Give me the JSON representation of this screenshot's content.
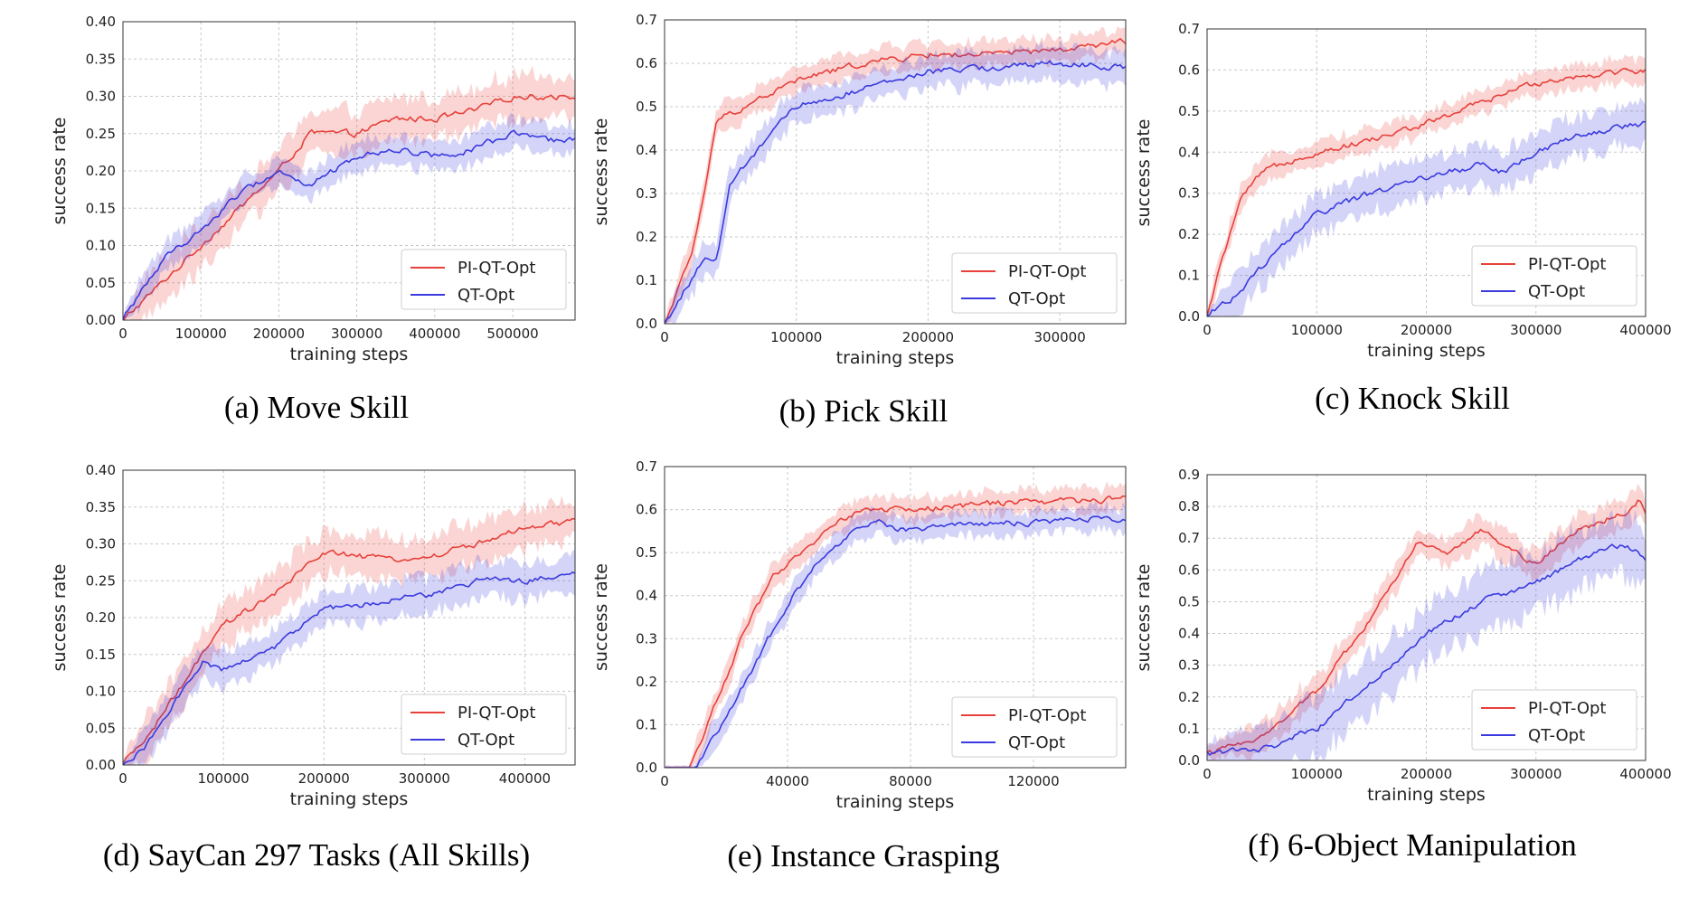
{
  "colors": {
    "pi_qt_opt": "#e8403a",
    "qt_opt": "#3a3ae0"
  },
  "chart_data": [
    {
      "type": "line",
      "caption": "(a) Move Skill",
      "xlabel": "training steps",
      "ylabel": "success rate",
      "xlim": [
        0,
        580000
      ],
      "ylim": [
        0,
        0.4
      ],
      "xticks": [
        0,
        100000,
        200000,
        300000,
        400000,
        500000
      ],
      "yticks": [
        0.0,
        0.05,
        0.1,
        0.15,
        0.2,
        0.25,
        0.3,
        0.35,
        0.4
      ],
      "ytick_decimals": 2,
      "grid": true,
      "legend": "bottom-right",
      "series": [
        {
          "name": "PI-QT-Opt",
          "color_key": "pi_qt_opt",
          "x": [
            0,
            30000,
            60000,
            100000,
            150000,
            200000,
            240000,
            300000,
            350000,
            400000,
            450000,
            500000,
            540000,
            575000
          ],
          "y": [
            0.0,
            0.03,
            0.06,
            0.1,
            0.15,
            0.2,
            0.25,
            0.25,
            0.27,
            0.27,
            0.28,
            0.3,
            0.3,
            0.3
          ],
          "band": 0.03
        },
        {
          "name": "QT-Opt",
          "color_key": "qt_opt",
          "x": [
            0,
            30000,
            60000,
            100000,
            150000,
            200000,
            240000,
            300000,
            350000,
            400000,
            450000,
            500000,
            540000,
            575000
          ],
          "y": [
            0.0,
            0.05,
            0.09,
            0.12,
            0.17,
            0.2,
            0.18,
            0.22,
            0.23,
            0.22,
            0.23,
            0.25,
            0.24,
            0.24
          ],
          "band": 0.02
        }
      ]
    },
    {
      "type": "line",
      "caption": "(b) Pick Skill",
      "xlabel": "training steps",
      "ylabel": "success rate",
      "xlim": [
        0,
        350000
      ],
      "ylim": [
        0,
        0.7
      ],
      "xticks": [
        0,
        100000,
        200000,
        300000
      ],
      "yticks": [
        0.0,
        0.1,
        0.2,
        0.3,
        0.4,
        0.5,
        0.6,
        0.7
      ],
      "ytick_decimals": 1,
      "grid": true,
      "legend": "bottom-right",
      "series": [
        {
          "name": "PI-QT-Opt",
          "color_key": "pi_qt_opt",
          "x": [
            0,
            10000,
            20000,
            30000,
            40000,
            60000,
            100000,
            150000,
            200000,
            250000,
            300000,
            350000
          ],
          "y": [
            0.0,
            0.08,
            0.15,
            0.3,
            0.47,
            0.5,
            0.56,
            0.6,
            0.62,
            0.62,
            0.63,
            0.65
          ],
          "band": 0.03
        },
        {
          "name": "QT-Opt",
          "color_key": "qt_opt",
          "x": [
            0,
            10000,
            20000,
            30000,
            40000,
            50000,
            70000,
            100000,
            150000,
            200000,
            250000,
            300000,
            350000
          ],
          "y": [
            0.0,
            0.05,
            0.1,
            0.15,
            0.15,
            0.32,
            0.4,
            0.5,
            0.54,
            0.58,
            0.59,
            0.6,
            0.59
          ],
          "band": 0.04
        }
      ]
    },
    {
      "type": "line",
      "caption": "(c) Knock Skill",
      "xlabel": "training steps",
      "ylabel": "success rate",
      "xlim": [
        0,
        400000
      ],
      "ylim": [
        0,
        0.7
      ],
      "xticks": [
        0,
        100000,
        200000,
        300000,
        400000
      ],
      "yticks": [
        0.0,
        0.1,
        0.2,
        0.3,
        0.4,
        0.5,
        0.6,
        0.7
      ],
      "ytick_decimals": 1,
      "grid": true,
      "legend": "bottom-right",
      "series": [
        {
          "name": "PI-QT-Opt",
          "color_key": "pi_qt_opt",
          "x": [
            0,
            15000,
            30000,
            50000,
            75000,
            100000,
            150000,
            200000,
            250000,
            300000,
            350000,
            400000
          ],
          "y": [
            0.0,
            0.15,
            0.28,
            0.35,
            0.38,
            0.4,
            0.43,
            0.47,
            0.52,
            0.57,
            0.59,
            0.6
          ],
          "band": 0.03
        },
        {
          "name": "QT-Opt",
          "color_key": "qt_opt",
          "x": [
            0,
            25000,
            50000,
            75000,
            100000,
            150000,
            200000,
            250000,
            270000,
            300000,
            350000,
            400000
          ],
          "y": [
            0.0,
            0.05,
            0.12,
            0.19,
            0.25,
            0.3,
            0.34,
            0.37,
            0.35,
            0.4,
            0.45,
            0.47
          ],
          "band": 0.05
        }
      ]
    },
    {
      "type": "line",
      "caption": "(d) SayCan 297 Tasks (All Skills)",
      "xlabel": "training steps",
      "ylabel": "success rate",
      "xlim": [
        0,
        450000
      ],
      "ylim": [
        0,
        0.4
      ],
      "xticks": [
        0,
        100000,
        200000,
        300000,
        400000
      ],
      "yticks": [
        0.0,
        0.05,
        0.1,
        0.15,
        0.2,
        0.25,
        0.3,
        0.35,
        0.4
      ],
      "ytick_decimals": 2,
      "grid": true,
      "legend": "bottom-right",
      "series": [
        {
          "name": "PI-QT-Opt",
          "color_key": "pi_qt_opt",
          "x": [
            0,
            25000,
            50000,
            80000,
            100000,
            150000,
            200000,
            250000,
            300000,
            350000,
            400000,
            450000
          ],
          "y": [
            0.0,
            0.04,
            0.09,
            0.15,
            0.19,
            0.23,
            0.29,
            0.28,
            0.28,
            0.3,
            0.32,
            0.33
          ],
          "band": 0.03
        },
        {
          "name": "QT-Opt",
          "color_key": "qt_opt",
          "x": [
            0,
            25000,
            50000,
            80000,
            100000,
            150000,
            200000,
            250000,
            300000,
            350000,
            400000,
            450000
          ],
          "y": [
            0.0,
            0.03,
            0.08,
            0.14,
            0.13,
            0.16,
            0.21,
            0.22,
            0.23,
            0.25,
            0.25,
            0.26
          ],
          "band": 0.025
        }
      ]
    },
    {
      "type": "line",
      "caption": "(e) Instance Grasping",
      "xlabel": "training steps",
      "ylabel": "success rate",
      "xlim": [
        0,
        150000
      ],
      "ylim": [
        0,
        0.7
      ],
      "xticks": [
        0,
        40000,
        80000,
        120000
      ],
      "yticks": [
        0.0,
        0.1,
        0.2,
        0.3,
        0.4,
        0.5,
        0.6,
        0.7
      ],
      "ytick_decimals": 1,
      "grid": true,
      "legend": "bottom-right",
      "series": [
        {
          "name": "PI-QT-Opt",
          "color_key": "pi_qt_opt",
          "x": [
            0,
            8000,
            15000,
            25000,
            35000,
            45000,
            55000,
            65000,
            80000,
            100000,
            120000,
            140000,
            150000
          ],
          "y": [
            0.0,
            0.0,
            0.12,
            0.3,
            0.44,
            0.5,
            0.57,
            0.6,
            0.6,
            0.61,
            0.62,
            0.62,
            0.63
          ],
          "band": 0.03
        },
        {
          "name": "QT-Opt",
          "color_key": "qt_opt",
          "x": [
            0,
            10000,
            20000,
            30000,
            40000,
            50000,
            60000,
            70000,
            80000,
            100000,
            120000,
            140000,
            150000
          ],
          "y": [
            0.0,
            0.0,
            0.12,
            0.25,
            0.38,
            0.48,
            0.54,
            0.57,
            0.55,
            0.57,
            0.57,
            0.58,
            0.58
          ],
          "band": 0.03
        }
      ]
    },
    {
      "type": "line",
      "caption": "(f) 6-Object Manipulation",
      "xlabel": "training steps",
      "ylabel": "success rate",
      "xlim": [
        0,
        400000
      ],
      "ylim": [
        0,
        0.9
      ],
      "xticks": [
        0,
        100000,
        200000,
        300000,
        400000
      ],
      "yticks": [
        0.0,
        0.1,
        0.2,
        0.3,
        0.4,
        0.5,
        0.6,
        0.7,
        0.8,
        0.9
      ],
      "ytick_decimals": 1,
      "grid": true,
      "legend": "bottom-right",
      "series": [
        {
          "name": "PI-QT-Opt",
          "color_key": "pi_qt_opt",
          "x": [
            0,
            30000,
            60000,
            100000,
            150000,
            190000,
            220000,
            250000,
            270000,
            300000,
            340000,
            380000,
            395000,
            400000
          ],
          "y": [
            0.02,
            0.05,
            0.1,
            0.22,
            0.45,
            0.68,
            0.66,
            0.72,
            0.68,
            0.62,
            0.73,
            0.78,
            0.82,
            0.78
          ],
          "band": 0.05
        },
        {
          "name": "QT-Opt",
          "color_key": "qt_opt",
          "x": [
            0,
            30000,
            60000,
            80000,
            100000,
            150000,
            200000,
            250000,
            300000,
            350000,
            380000,
            400000
          ],
          "y": [
            0.02,
            0.03,
            0.04,
            0.08,
            0.1,
            0.25,
            0.4,
            0.5,
            0.56,
            0.65,
            0.68,
            0.64
          ],
          "band": 0.1
        }
      ]
    }
  ]
}
